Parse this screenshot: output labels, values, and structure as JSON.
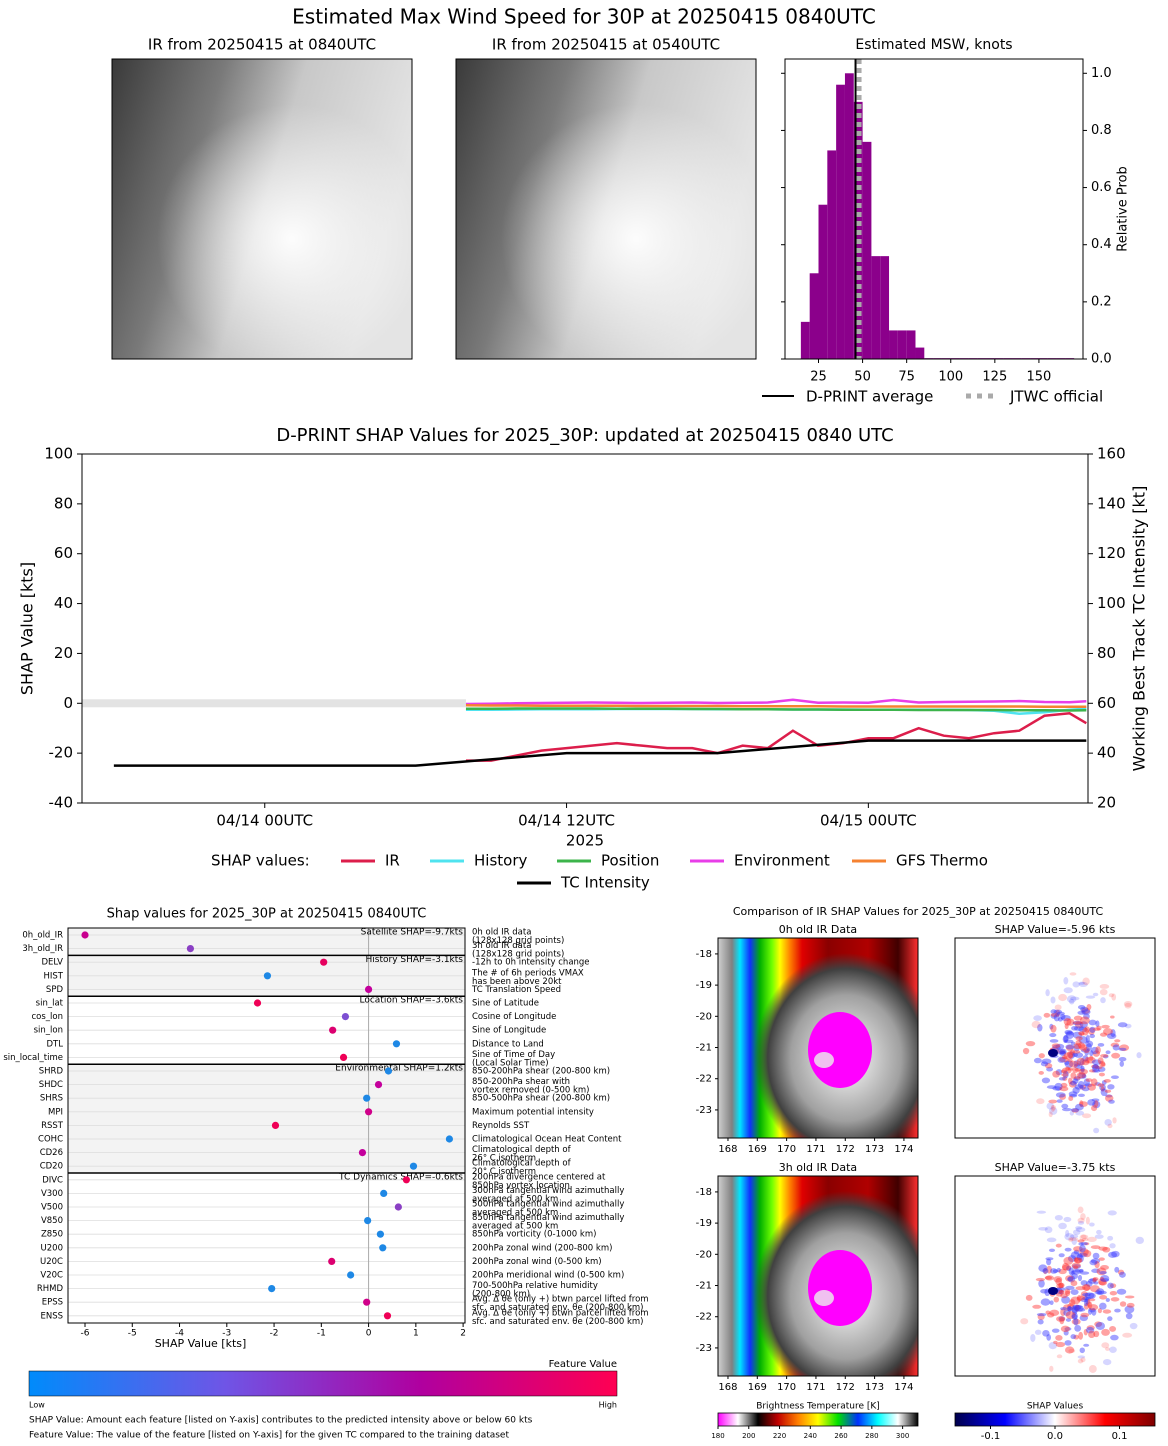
{
  "title": "Estimated Max Wind Speed for 30P at 20250415 0840UTC",
  "comparison_title": "Comparison of IR SHAP Values for 2025_30P at 20250415 0840UTC",
  "chart_data": [
    {
      "type": "image",
      "title": "IR from 20250415 at 0840UTC"
    },
    {
      "type": "image",
      "title": "IR from 20250415 at 0540UTC"
    },
    {
      "type": "histogram",
      "title": "Estimated MSW, knots",
      "ylabel": "Relative Prob",
      "color": "#8b008b",
      "bins": [
        15,
        20,
        25,
        30,
        35,
        40,
        45,
        50,
        55,
        60,
        65,
        70,
        75,
        80,
        85,
        90,
        95,
        100,
        105,
        110,
        115,
        120,
        125,
        130,
        135,
        140,
        145,
        150,
        155,
        160,
        165,
        170
      ],
      "values": [
        0.13,
        0.3,
        0.54,
        0.73,
        0.96,
        1.0,
        0.9,
        0.76,
        0.36,
        0.36,
        0.1,
        0.1,
        0.1,
        0.04,
        0.003,
        0.003,
        0.003,
        0.003,
        0.003,
        0.003,
        0.003,
        0.003,
        0.003,
        0.003,
        0.003,
        0.003,
        0.003,
        0.003,
        0.003,
        0.003,
        0.003
      ],
      "xlim": [
        6,
        175
      ],
      "xticks": [
        25,
        50,
        75,
        100,
        125,
        150
      ],
      "ylim": [
        0,
        1.05
      ],
      "yticks": [
        {
          "value": 0,
          "label": "0.0"
        },
        {
          "value": 0.2,
          "label": "0.2"
        },
        {
          "value": 0.4,
          "label": "0.4"
        },
        {
          "value": 0.6,
          "label": "0.6"
        },
        {
          "value": 0.8,
          "label": "0.8"
        },
        {
          "value": 1,
          "label": "1.0"
        }
      ],
      "vlines": [
        {
          "name": "D-PRINT average",
          "value": 46,
          "color": "#000000"
        },
        {
          "name": "JTWC official",
          "value": 48,
          "color": "#aaaaaa"
        }
      ]
    },
    {
      "type": "line",
      "title": "D-PRINT SHAP Values for 2025_30P: updated at 20250415 0840 UTC",
      "ylabel": "SHAP Value [kts]",
      "y2label": "Working Best Track TC Intensity [kt]",
      "xlabel": "2025",
      "legend_title": "SHAP values:",
      "xlim": [
        "2025-04-13T16:44",
        "2025-04-15T08:44"
      ],
      "xticks": [
        {
          "value": "2025-04-14T00:00",
          "label": "04/14 00UTC"
        },
        {
          "value": "2025-04-14T12:00",
          "label": "04/14 12UTC"
        },
        {
          "value": "2025-04-15T00:00",
          "label": "04/15 00UTC"
        }
      ],
      "ylim": [
        -40,
        100
      ],
      "yticks": [
        -40,
        -20,
        0,
        20,
        40,
        60,
        80,
        100
      ],
      "y2lim": [
        20,
        160
      ],
      "y2ticks": [
        20,
        40,
        60,
        80,
        100,
        120,
        140,
        160
      ],
      "x": [
        "2025-04-14T08:00",
        "2025-04-14T09:00",
        "2025-04-14T10:00",
        "2025-04-14T11:00",
        "2025-04-14T12:00",
        "2025-04-14T13:00",
        "2025-04-14T14:00",
        "2025-04-14T15:00",
        "2025-04-14T16:00",
        "2025-04-14T17:00",
        "2025-04-14T18:00",
        "2025-04-14T19:00",
        "2025-04-14T20:00",
        "2025-04-14T21:00",
        "2025-04-14T22:00",
        "2025-04-14T23:00",
        "2025-04-15T00:00",
        "2025-04-15T01:00",
        "2025-04-15T02:00",
        "2025-04-15T03:00",
        "2025-04-15T04:00",
        "2025-04-15T05:00",
        "2025-04-15T06:00",
        "2025-04-15T07:00",
        "2025-04-15T08:00",
        "2025-04-15T08:40"
      ],
      "series": [
        {
          "name": "IR",
          "color": "#dc1e4b",
          "values": [
            -23,
            -23,
            -21,
            -19,
            -18,
            -17,
            -16,
            -17,
            -18,
            -18,
            -20,
            -17,
            -18,
            -11,
            -17,
            -16,
            -14,
            -14,
            -10,
            -13,
            -14,
            -12,
            -11,
            -5,
            -4,
            -8
          ]
        },
        {
          "name": "History",
          "color": "#4fe3ef",
          "values": [
            -2.6,
            -2.6,
            -2.5,
            -2.4,
            -2.4,
            -2.4,
            -2.3,
            -2.3,
            -2.3,
            -2.3,
            -2.4,
            -2.4,
            -2.4,
            -2.5,
            -2.5,
            -2.5,
            -2.6,
            -2.6,
            -2.6,
            -2.6,
            -2.7,
            -3.0,
            -4.2,
            -3.6,
            -2.6,
            -2.2
          ]
        },
        {
          "name": "Position",
          "color": "#3cb44b",
          "values": [
            -2.2,
            -2.2,
            -2.1,
            -2.1,
            -2.1,
            -2.1,
            -2.2,
            -2.2,
            -2.2,
            -2.3,
            -2.3,
            -2.4,
            -2.4,
            -2.5,
            -2.5,
            -2.6,
            -2.6,
            -2.6,
            -2.7,
            -2.7,
            -2.7,
            -2.7,
            -2.8,
            -2.8,
            -2.9,
            -2.8
          ]
        },
        {
          "name": "Environment",
          "color": "#e83ee8",
          "values": [
            -0.3,
            -0.2,
            0,
            0.1,
            0.2,
            0.3,
            0.2,
            0.1,
            0.2,
            0.3,
            0.1,
            0.2,
            0.3,
            1.4,
            0.2,
            0.3,
            0.2,
            1.3,
            0.3,
            0.5,
            0.6,
            0.7,
            0.9,
            0.5,
            0.4,
            0.8
          ]
        },
        {
          "name": "GFS Thermo",
          "color": "#f58231",
          "values": [
            -0.8,
            -0.9,
            -0.9,
            -1.0,
            -1.0,
            -1.0,
            -1.0,
            -1.1,
            -1.1,
            -1.1,
            -1.1,
            -1.2,
            -1.2,
            -1.2,
            -1.2,
            -1.3,
            -1.3,
            -1.3,
            -1.3,
            -1.3,
            -1.3,
            -1.3,
            -1.3,
            -1.4,
            -1.4,
            -1.4
          ]
        },
        {
          "name": "TC Intensity",
          "color": "#000000",
          "axis": "y2",
          "x": [
            "2025-04-13T18:00",
            "2025-04-14T06:00",
            "2025-04-14T12:00",
            "2025-04-14T18:00",
            "2025-04-15T00:00",
            "2025-04-15T08:40"
          ],
          "values": [
            35,
            35,
            40,
            40,
            45,
            45
          ]
        }
      ]
    },
    {
      "type": "shap",
      "title": "Shap values for 2025_30P at 20250415 0840UTC",
      "xlabel": "SHAP Value [kts]",
      "xlim": [
        -6.36,
        2.04
      ],
      "xticks": [
        -6,
        -5,
        -4,
        -3,
        -2,
        -1,
        0,
        1,
        2
      ],
      "groups": [
        {
          "label": "Satellite SHAP=-9.7kts",
          "features": [
            {
              "name": "0h_old_IR",
              "description": [
                "0h old IR data",
                "(128x128 grid points)"
              ],
              "value": -6.0,
              "color": "#c8008f"
            },
            {
              "name": "3h_old_IR",
              "description": [
                "3h old IR data",
                "(128x128 grid points)"
              ],
              "value": -3.77,
              "color": "#8a3fc4"
            }
          ]
        },
        {
          "label": "History SHAP=-3.1kts",
          "features": [
            {
              "name": "DELV",
              "description": [
                "-12h to 0h intensity change"
              ],
              "value": -0.95,
              "color": "#e6005e"
            },
            {
              "name": "HIST",
              "description": [
                "The # of 6h periods VMAX",
                "has been above 20kt"
              ],
              "value": -2.14,
              "color": "#1e88e5"
            },
            {
              "name": "SPD",
              "description": [
                "TC Translation Speed"
              ],
              "value": 0.0,
              "color": "#c4009c"
            }
          ]
        },
        {
          "label": "Location SHAP=-3.6kts",
          "features": [
            {
              "name": "sin_lat",
              "description": [
                "Sine of Latitude"
              ],
              "value": -2.35,
              "color": "#ef0056"
            },
            {
              "name": "cos_lon",
              "description": [
                "Cosine of Longitude"
              ],
              "value": -0.49,
              "color": "#7d4fd2"
            },
            {
              "name": "sin_lon",
              "description": [
                "Sine of Longitude"
              ],
              "value": -0.76,
              "color": "#dc0070"
            },
            {
              "name": "DTL",
              "description": [
                "Distance to Land"
              ],
              "value": 0.59,
              "color": "#1e88e5"
            },
            {
              "name": "sin_local_time",
              "description": [
                "Sine of Time of Day",
                "(Local Solar Time)"
              ],
              "value": -0.53,
              "color": "#ef0056"
            }
          ]
        },
        {
          "label": "Environmental SHAP=1.2kts",
          "features": [
            {
              "name": "SHRD",
              "description": [
                "850-200hPa shear (200-800 km)"
              ],
              "value": 0.42,
              "color": "#1e88e5"
            },
            {
              "name": "SHDC",
              "description": [
                "850-200hPa shear with",
                "vortex removed (0-500 km)"
              ],
              "value": 0.21,
              "color": "#c4009c"
            },
            {
              "name": "SHRS",
              "description": [
                "850-500hPa shear (200-800 km)"
              ],
              "value": -0.04,
              "color": "#1e88e5"
            },
            {
              "name": "MPI",
              "description": [
                "Maximum potential intensity"
              ],
              "value": 0.0,
              "color": "#d0008a"
            },
            {
              "name": "RSST",
              "description": [
                "Reynolds SST"
              ],
              "value": -1.97,
              "color": "#ef0056"
            },
            {
              "name": "COHC",
              "description": [
                "Climatological Ocean Heat Content"
              ],
              "value": 1.71,
              "color": "#1e88e5"
            },
            {
              "name": "CD26",
              "description": [
                "Climatological depth of",
                "26° C isotherm"
              ],
              "value": -0.13,
              "color": "#c4009c"
            },
            {
              "name": "CD20",
              "description": [
                "Climatological depth of",
                "20° C isotherm"
              ],
              "value": 0.95,
              "color": "#1e88e5"
            }
          ]
        },
        {
          "label": "TC Dynamics SHAP=-0.6kts",
          "features": [
            {
              "name": "DIVC",
              "description": [
                "200hPa divergence centered at",
                "850hPa vortex location"
              ],
              "value": 0.8,
              "color": "#ef0056"
            },
            {
              "name": "V300",
              "description": [
                "300hPa tangential wind azimuthally",
                "averaged at 500 km"
              ],
              "value": 0.32,
              "color": "#1e88e5"
            },
            {
              "name": "V500",
              "description": [
                "500hPa tangential wind azimuthally",
                "averaged at 500 km"
              ],
              "value": 0.63,
              "color": "#8a3fc4"
            },
            {
              "name": "V850",
              "description": [
                "850hPa tangential wind azimuthally",
                "averaged at 500 km"
              ],
              "value": -0.02,
              "color": "#1e88e5"
            },
            {
              "name": "Z850",
              "description": [
                "850hPa vorticity (0-1000 km)"
              ],
              "value": 0.25,
              "color": "#1e88e5"
            },
            {
              "name": "U200",
              "description": [
                "200hPa zonal wind (200-800 km)"
              ],
              "value": 0.3,
              "color": "#1e88e5"
            },
            {
              "name": "U20C",
              "description": [
                "200hPa zonal wind (0-500 km)"
              ],
              "value": -0.78,
              "color": "#dc0070"
            },
            {
              "name": "V20C",
              "description": [
                "200hPa meridional wind (0-500 km)"
              ],
              "value": -0.38,
              "color": "#1e88e5"
            },
            {
              "name": "RHMD",
              "description": [
                "700-500hPa relative humidity",
                "(200-800 km)"
              ],
              "value": -2.05,
              "color": "#1e88e5"
            },
            {
              "name": "EPSS",
              "description": [
                "Avg. Δ θe (only +) btwn parcel lifted from",
                "sfc. and saturated env. θe (200-800 km)"
              ],
              "value": -0.04,
              "color": "#d0008a"
            },
            {
              "name": "ENSS",
              "description": [
                "Avg. Δ θe (only +) btwn parcel lifted from",
                "sfc. and saturated env. θe (200-800 km)"
              ],
              "value": 0.4,
              "color": "#ef0056"
            }
          ]
        }
      ],
      "colorbar": {
        "title": "Feature Value",
        "low": "Low",
        "high": "High",
        "colors": [
          "#008bfb",
          "#6f55e6",
          "#b0009f",
          "#ff0052"
        ]
      },
      "notes": [
        "SHAP Value: Amount each feature [listed on Y-axis] contributes to the predicted intensity above or below 60 kts",
        "Feature Value: The value of the feature [listed on Y-axis] for the given TC compared to the training dataset"
      ]
    },
    {
      "type": "ir-map",
      "title": "0h old IR Data",
      "xlim": [
        167.66,
        174.48
      ],
      "ylim": [
        -23.9,
        -17.49
      ],
      "xticks": [
        168,
        169,
        170,
        171,
        172,
        173,
        174
      ],
      "yticks": [
        -18,
        -19,
        -20,
        -21,
        -22,
        -23
      ]
    },
    {
      "type": "shap-map",
      "title": "SHAP Value=-5.96 kts"
    },
    {
      "type": "ir-map",
      "title": "3h old IR Data",
      "xlim": [
        167.66,
        174.48
      ],
      "ylim": [
        -23.9,
        -17.49
      ],
      "xticks": [
        168,
        169,
        170,
        171,
        172,
        173,
        174
      ],
      "yticks": [
        -18,
        -19,
        -20,
        -21,
        -22,
        -23
      ]
    },
    {
      "type": "shap-map",
      "title": "SHAP Value=-3.75 kts"
    },
    {
      "type": "colorbar",
      "title": "Brightness Temperature [K]",
      "xlim": [
        180,
        310
      ],
      "xticks": [
        180,
        200,
        220,
        240,
        260,
        280,
        300
      ],
      "colors": [
        "#ff00ff",
        "#ffffff",
        "#000000",
        "#c00000",
        "#ff7f00",
        "#ffff00",
        "#00e000",
        "#0030ff",
        "#00ffff",
        "#ffffff",
        "#000000"
      ]
    },
    {
      "type": "colorbar",
      "title": "SHAP Values",
      "xlim": [
        -0.155,
        0.155
      ],
      "xticks": [
        -0.1,
        {
          "value": 0,
          "label": "0.0"
        },
        0.1
      ],
      "colors": [
        "#00004c",
        "#0000ff",
        "#ffffff",
        "#ff0000",
        "#7f0000"
      ]
    }
  ]
}
